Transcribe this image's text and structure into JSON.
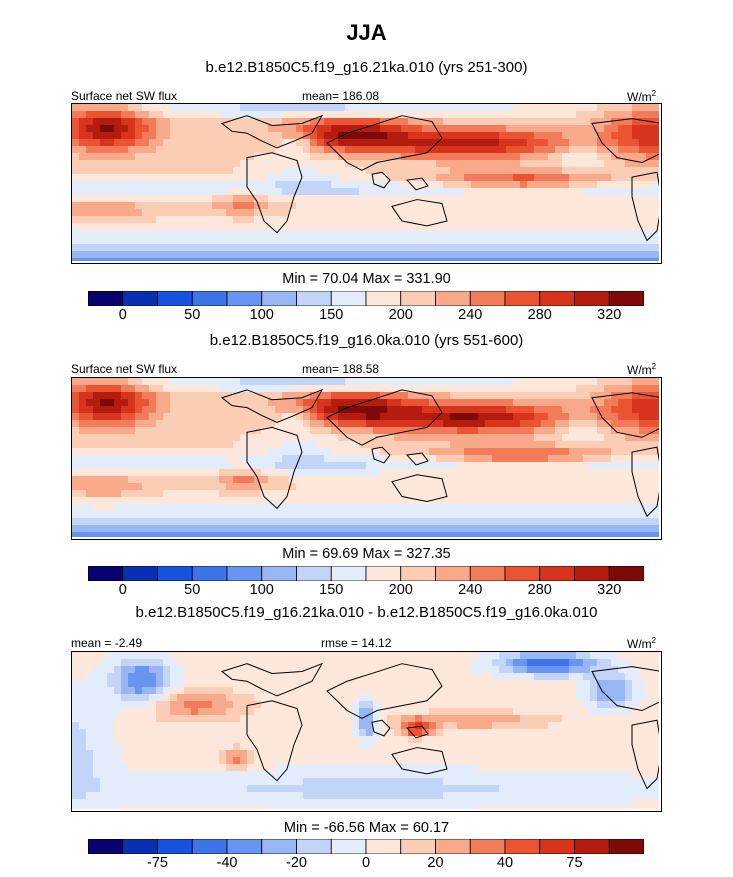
{
  "title": "JJA",
  "panels": [
    {
      "subtitle": "b.e12.B1850C5.f19_g16.21ka.010 (yrs 251-300)",
      "left_label": "Surface net SW flux",
      "center_label": "mean= 186.08",
      "units_base": "W/m",
      "units_exp": "2",
      "minmax": "Min =  70.04 Max = 331.90",
      "field": "sw"
    },
    {
      "subtitle": "b.e12.B1850C5.f19_g16.0ka.010 (yrs 551-600)",
      "left_label": "Surface net SW flux",
      "center_label": "mean= 188.58",
      "units_base": "W/m",
      "units_exp": "2",
      "minmax": "Min =  69.69 Max = 327.35",
      "field": "sw"
    },
    {
      "subtitle": "b.e12.B1850C5.f19_g16.21ka.010 - b.e12.B1850C5.f19_g16.0ka.010",
      "left_label": "mean =  -2.49",
      "center_label": "rmse =  14.12",
      "units_base": "W/m",
      "units_exp": "2",
      "minmax": "Min = -66.56 Max =  60.17",
      "field": "diff"
    }
  ],
  "colorbars": [
    {
      "tick_labels": [
        "0",
        "50",
        "100",
        "150",
        "200",
        "240",
        "280",
        "320"
      ],
      "tick_boxes": [
        1,
        3,
        5,
        7,
        9,
        11,
        13,
        15
      ]
    },
    {
      "tick_labels": [
        "0",
        "50",
        "100",
        "150",
        "200",
        "240",
        "280",
        "320"
      ],
      "tick_boxes": [
        1,
        3,
        5,
        7,
        9,
        11,
        13,
        15
      ]
    },
    {
      "tick_labels": [
        "-75",
        "-40",
        "-20",
        "0",
        "20",
        "40",
        "75"
      ],
      "tick_boxes": [
        2,
        4,
        6,
        8,
        10,
        12,
        14
      ]
    }
  ],
  "palette": [
    "#08026e",
    "#0a2fb3",
    "#1653e0",
    "#3d74ea",
    "#6795ef",
    "#97b6f3",
    "#c2d4f7",
    "#e3ecfb",
    "#fde7da",
    "#fbcdb4",
    "#f7a98a",
    "#f27c5a",
    "#ea5433",
    "#d8331c",
    "#b31c0f",
    "#7d0a08"
  ],
  "chart_data": [
    {
      "type": "heatmap",
      "title": "JJA",
      "subtitle": "b.e12.B1850C5.f19_g16.21ka.010 (yrs 251-300)",
      "variable": "Surface net SW flux",
      "units": "W/m2",
      "mean": 186.08,
      "min": 70.04,
      "max": 331.9,
      "colorbar_ticks": [
        0,
        50,
        100,
        150,
        200,
        240,
        280,
        320
      ]
    },
    {
      "type": "heatmap",
      "title": "JJA",
      "subtitle": "b.e12.B1850C5.f19_g16.0ka.010 (yrs 551-600)",
      "variable": "Surface net SW flux",
      "units": "W/m2",
      "mean": 188.58,
      "min": 69.69,
      "max": 327.35,
      "colorbar_ticks": [
        0,
        50,
        100,
        150,
        200,
        240,
        280,
        320
      ]
    },
    {
      "type": "heatmap",
      "title": "JJA",
      "subtitle": "b.e12.B1850C5.f19_g16.21ka.010 - b.e12.B1850C5.f19_g16.0ka.010",
      "units": "W/m2",
      "mean": -2.49,
      "rmse": 14.12,
      "min": -66.56,
      "max": 60.17,
      "colorbar_ticks": [
        -75,
        -40,
        -20,
        0,
        20,
        40,
        75
      ]
    }
  ]
}
